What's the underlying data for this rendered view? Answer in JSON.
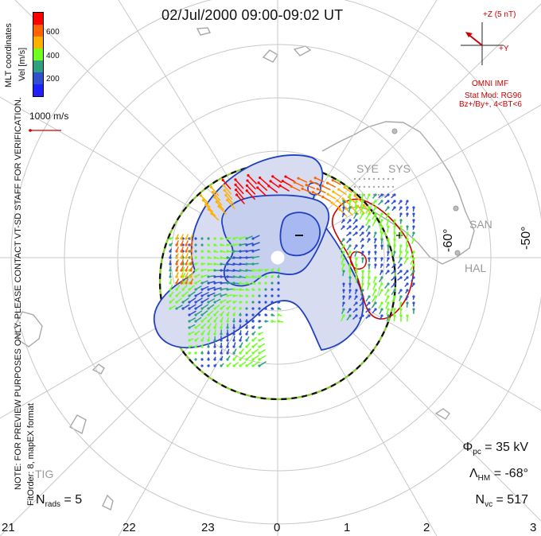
{
  "header": {
    "title": "02/Jul/2000 09:00-09:02 UT"
  },
  "left_notes": {
    "line1": "NOTE: FOR PREVIEW PURPOSES ONLY. PLEASE CONTACT VT-SD STAFF FOR VERIFICATION.",
    "line2": "FitOrder: 8, mapEX format"
  },
  "legend": {
    "mlt_coordinates": "MLT coordinates",
    "velocity_label": "Vel [m/s]",
    "scale_ticks": [
      "600",
      "400",
      "200"
    ],
    "velocity_scale": "1000 m/s",
    "colors": [
      "#ff0000",
      "#ff6600",
      "#ffb000",
      "#70ff20",
      "#30a080",
      "#3050d0",
      "#2020ff"
    ]
  },
  "omni": {
    "plus_z": "+Z (5 nT)",
    "plus_y": "+Y",
    "imf": "OMNI IMF",
    "stat_mod": "Stat Mod: RG96",
    "conditions": "Bz+/By+, 4<BT<6"
  },
  "stations": {
    "sye": "SYE",
    "sys": "SYS",
    "san": "SAN",
    "hal": "HAL",
    "tig": "TIG"
  },
  "latitudes": {
    "neg60": "-60°",
    "neg50": "-50°"
  },
  "stats": {
    "phi_pc_symbol": "Φ",
    "phi_pc_sub": "pc",
    "phi_pc_value": "= 35 kV",
    "lambda_symbol": "Λ",
    "lambda_sub": "HM",
    "lambda_value": "= -68°",
    "nvc_symbol": "N",
    "nvc_sub": "vc",
    "nvc_value": "= 517",
    "nrads_symbol": "N",
    "nrads_sub": "rads",
    "nrads_value": "= 5"
  },
  "mlt_axis": [
    "21",
    "22",
    "23",
    "0",
    "1",
    "2",
    "3"
  ],
  "map": {
    "background": "#ffffff",
    "grid_color": "#c8c8c8",
    "coast_color": "#a8a8a8",
    "contour_fill": "#d7dcf0",
    "contour_core": "#b8c4ee",
    "contour_line": "#2040c0",
    "boundary_dash_color": "#111111",
    "boundary_green": "#88cc33"
  }
}
